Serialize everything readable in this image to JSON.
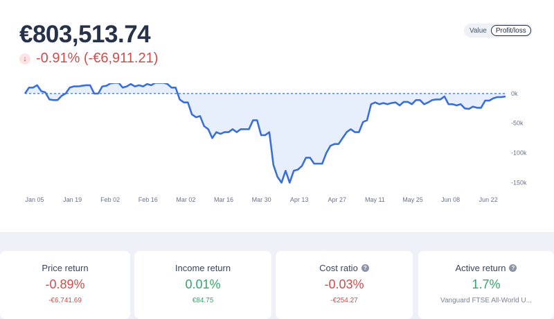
{
  "header": {
    "total_value": "€803,513.74",
    "change_text": "-0.91% (-€6,911.21)",
    "arrow_glyph": "↓"
  },
  "toggle": {
    "options": [
      "Value",
      "Profit/loss"
    ],
    "selected": "Profit/loss"
  },
  "chart_data": {
    "type": "area",
    "title": "",
    "xlabel": "",
    "ylabel": "",
    "x_ticks": [
      "Jan 05",
      "Jan 19",
      "Feb 02",
      "Feb 16",
      "Mar 02",
      "Mar 16",
      "Mar 30",
      "Apr 13",
      "Apr 27",
      "May 11",
      "May 25",
      "Jun 08",
      "Jun 22"
    ],
    "y_ticks": [
      "0k",
      "-50k",
      "-100k",
      "-150k"
    ],
    "y_tick_values": [
      0,
      -50000,
      -100000,
      -150000
    ],
    "ylim": [
      -160000,
      8000
    ],
    "baseline": 0,
    "line_color": "#3a6fd8",
    "fill_color": "#e3ebfb",
    "series": [
      {
        "values": [
          0,
          10000,
          10000,
          14000,
          4000,
          2000,
          -10000,
          -11000,
          -11000,
          -4000,
          0,
          10000,
          12000,
          12000,
          13000,
          14000,
          14000,
          0,
          0,
          12000,
          13000,
          17000,
          18000,
          18000,
          10000,
          12000,
          16000,
          12000,
          14000,
          12000,
          16000,
          14000,
          18000,
          18000,
          18000,
          16000,
          10000,
          10000,
          -10000,
          -15000,
          -15000,
          -35000,
          -40000,
          -38000,
          -55000,
          -60000,
          -75000,
          -65000,
          -68000,
          -65000,
          -65000,
          -60000,
          -65000,
          -60000,
          -60000,
          -60000,
          -45000,
          -45000,
          -70000,
          -70000,
          -65000,
          -120000,
          -140000,
          -150000,
          -130000,
          -150000,
          -130000,
          -128000,
          -122000,
          -108000,
          -108000,
          -118000,
          -118000,
          -118000,
          -100000,
          -88000,
          -85000,
          -85000,
          -75000,
          -65000,
          -60000,
          -65000,
          -65000,
          -48000,
          -45000,
          -18000,
          -15000,
          -18000,
          -16000,
          -18000,
          -16000,
          -15000,
          -20000,
          -14000,
          -14000,
          -18000,
          -11000,
          -11000,
          -18000,
          -15000,
          -11000,
          -10000,
          -10000,
          -5000,
          -18000,
          -18000,
          -20000,
          -18000,
          -25000,
          -26000,
          -22000,
          -24000,
          -24000,
          -12000,
          -12000,
          -8000,
          -6000,
          -6000,
          -5000
        ]
      }
    ]
  },
  "cards": [
    {
      "title": "Price return",
      "value": "-0.89%",
      "sub": "-€6,741.69",
      "tone": "neg",
      "sub_tone": "neg",
      "info": false
    },
    {
      "title": "Income return",
      "value": "0.01%",
      "sub": "€84.75",
      "tone": "pos",
      "sub_tone": "pos",
      "info": false
    },
    {
      "title": "Cost ratio",
      "value": "-0.03%",
      "sub": "-€254.27",
      "tone": "neg",
      "sub_tone": "neg",
      "info": true
    },
    {
      "title": "Active return",
      "value": "1.7%",
      "sub": "Vanguard FTSE All-World U...",
      "tone": "pos",
      "sub_tone": "muted",
      "info": true
    }
  ],
  "info_glyph": "?"
}
